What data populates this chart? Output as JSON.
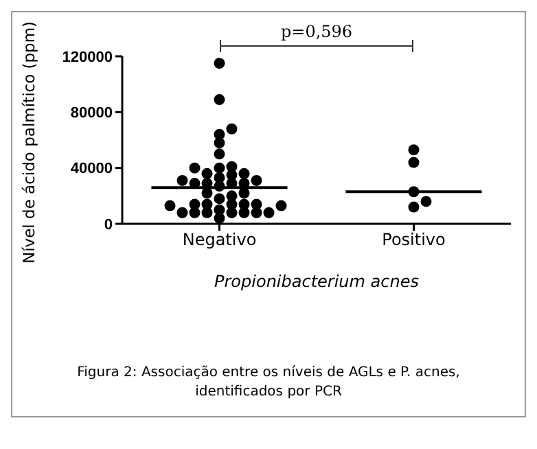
{
  "chart_data": {
    "type": "scatter",
    "ylabel": "Nível de  ácido palmítico (ppm)",
    "xlabel": "Propionibacterium acnes",
    "categories": [
      "Negativo",
      "Positivo"
    ],
    "series": [
      {
        "type": "scatter",
        "color": "#000000",
        "x": [
          "Negativo",
          "Negativo",
          "Negativo",
          "Negativo",
          "Negativo",
          "Negativo",
          "Negativo",
          "Negativo",
          "Negativo",
          "Negativo",
          "Negativo",
          "Negativo",
          "Negativo",
          "Negativo",
          "Negativo",
          "Negativo",
          "Negativo",
          "Negativo",
          "Negativo",
          "Negativo",
          "Negativo",
          "Negativo",
          "Negativo",
          "Negativo",
          "Negativo",
          "Negativo",
          "Negativo",
          "Negativo",
          "Negativo",
          "Negativo",
          "Negativo",
          "Negativo",
          "Negativo",
          "Negativo",
          "Negativo",
          "Negativo",
          "Negativo",
          "Negativo",
          "Negativo",
          "Negativo",
          "Positivo",
          "Positivo",
          "Positivo",
          "Positivo",
          "Positivo"
        ],
        "values": [
          115000,
          89000,
          68000,
          64000,
          58000,
          50000,
          41000,
          40000,
          40000,
          36000,
          36000,
          33000,
          35000,
          31000,
          31000,
          29000,
          29000,
          29000,
          29000,
          27000,
          22000,
          22000,
          20000,
          18000,
          14000,
          14000,
          14000,
          14000,
          14000,
          13000,
          13000,
          8000,
          8000,
          8000,
          8000,
          8000,
          8000,
          8000,
          10000,
          4000,
          53000,
          44000,
          23000,
          16000,
          12000
        ]
      }
    ],
    "ref_lines": [
      {
        "axis": "y",
        "value": 26000,
        "color": "#000000"
      },
      {
        "axis": "y",
        "value": 23000,
        "color": "#000000"
      }
    ],
    "ylim": [
      0,
      120000
    ],
    "yticks": [
      0,
      40000,
      80000,
      120000
    ],
    "marker": "circle",
    "grid": false,
    "annotations": [
      "p=0,596",
      "Figura 2: Associação entre os níveis de AGLs e P. acnes, identificados por PCR"
    ]
  }
}
